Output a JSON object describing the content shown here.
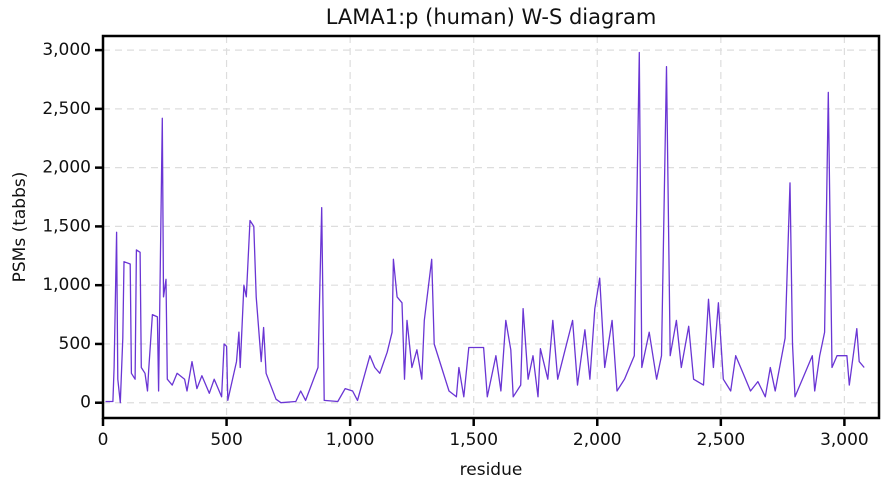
{
  "chart_data": {
    "type": "line",
    "title": "LAMA1:p (human) W-S diagram",
    "x_label": "residue",
    "y_label": "PSMs (tabbs)",
    "color": "#6a35d4",
    "grid": true,
    "xlim": [
      0,
      3140
    ],
    "ylim": [
      -130,
      3120
    ],
    "xticks": [
      0,
      500,
      {
        "value": 1000,
        "label": "1,000"
      },
      {
        "value": 1500,
        "label": "1,500"
      },
      {
        "value": 2000,
        "label": "2,000"
      },
      {
        "value": 2500,
        "label": "2,500"
      },
      {
        "value": 3000,
        "label": "3,000"
      }
    ],
    "yticks": [
      0,
      500,
      {
        "value": 1000,
        "label": "1,000"
      },
      {
        "value": 1500,
        "label": "1,500"
      },
      {
        "value": 2000,
        "label": "2,000"
      },
      {
        "value": 2500,
        "label": "2,500"
      },
      {
        "value": 3000,
        "label": "3,000"
      }
    ],
    "x": [
      10,
      40,
      45,
      55,
      60,
      70,
      80,
      85,
      110,
      115,
      130,
      135,
      150,
      155,
      170,
      180,
      185,
      200,
      220,
      225,
      240,
      245,
      255,
      260,
      280,
      300,
      330,
      340,
      360,
      380,
      400,
      430,
      450,
      480,
      490,
      500,
      505,
      540,
      550,
      555,
      570,
      580,
      595,
      610,
      620,
      640,
      650,
      660,
      700,
      720,
      780,
      800,
      820,
      870,
      885,
      895,
      950,
      980,
      1010,
      1030,
      1080,
      1100,
      1120,
      1150,
      1170,
      1175,
      1190,
      1210,
      1220,
      1230,
      1250,
      1270,
      1290,
      1300,
      1330,
      1340,
      1370,
      1400,
      1430,
      1440,
      1460,
      1480,
      1540,
      1555,
      1570,
      1590,
      1610,
      1630,
      1650,
      1660,
      1690,
      1700,
      1720,
      1740,
      1760,
      1770,
      1800,
      1820,
      1840,
      1870,
      1900,
      1920,
      1950,
      1970,
      1990,
      2010,
      2030,
      2060,
      2080,
      2110,
      2150,
      2170,
      2180,
      2210,
      2240,
      2260,
      2280,
      2295,
      2320,
      2340,
      2370,
      2390,
      2430,
      2450,
      2470,
      2490,
      2510,
      2540,
      2560,
      2590,
      2620,
      2650,
      2680,
      2700,
      2720,
      2760,
      2780,
      2790,
      2800,
      2830,
      2870,
      2880,
      2900,
      2920,
      2935,
      2950,
      2970,
      3010,
      3020,
      3050,
      3060,
      3080
    ],
    "values": [
      10,
      10,
      300,
      1450,
      200,
      0,
      550,
      1200,
      1180,
      250,
      200,
      1300,
      1280,
      300,
      250,
      100,
      280,
      750,
      730,
      100,
      2420,
      900,
      1050,
      200,
      150,
      250,
      200,
      100,
      350,
      120,
      230,
      80,
      200,
      50,
      500,
      480,
      20,
      350,
      600,
      300,
      1000,
      900,
      1550,
      1500,
      900,
      350,
      640,
      250,
      30,
      0,
      10,
      100,
      20,
      300,
      1660,
      20,
      10,
      120,
      100,
      20,
      400,
      300,
      250,
      430,
      600,
      1220,
      900,
      850,
      200,
      700,
      300,
      450,
      200,
      700,
      1220,
      500,
      300,
      100,
      50,
      300,
      50,
      470,
      470,
      50,
      200,
      400,
      100,
      700,
      450,
      50,
      150,
      800,
      200,
      400,
      50,
      460,
      200,
      700,
      200,
      450,
      700,
      150,
      620,
      200,
      800,
      1060,
      300,
      700,
      100,
      200,
      400,
      2980,
      300,
      600,
      200,
      400,
      2860,
      400,
      700,
      300,
      650,
      200,
      150,
      880,
      300,
      850,
      200,
      100,
      400,
      250,
      100,
      180,
      50,
      300,
      100,
      550,
      1870,
      500,
      50,
      200,
      400,
      100,
      400,
      600,
      2640,
      300,
      400,
      400,
      150,
      630,
      350,
      300
    ]
  }
}
